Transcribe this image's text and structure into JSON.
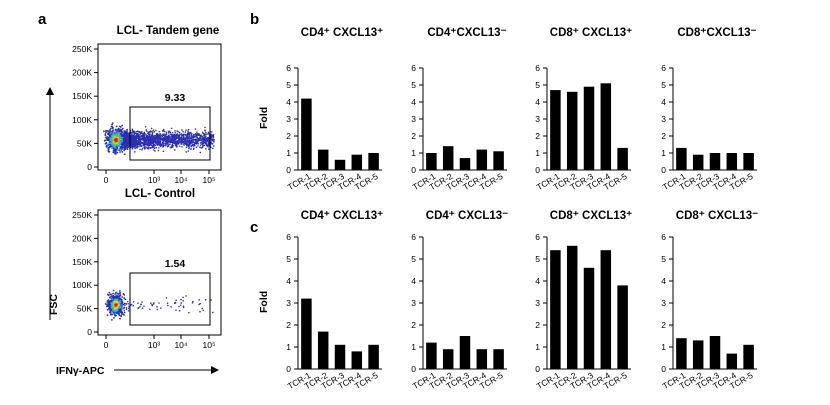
{
  "panels": {
    "a": "a",
    "b": "b",
    "c": "c"
  },
  "flow": {
    "plots": [
      {
        "title": "LCL- Tandem gene",
        "gate_value": "9.33",
        "events": 0.0933
      },
      {
        "title": "LCL- Control",
        "gate_value": "1.54",
        "events": 0.0154
      }
    ],
    "y_ticks": [
      "250K",
      "200K",
      "150K",
      "100K",
      "50K",
      "0"
    ],
    "x_ticks": [
      "0",
      "10³",
      "10⁴",
      "10⁵"
    ],
    "y_label": "FSC",
    "x_label": "IFNγ-APC"
  },
  "chart_data": [
    {
      "panel": "b",
      "type": "bar",
      "title": "CD4⁺ CXCL13⁺",
      "ylabel": "Fold",
      "ylim": [
        0,
        6
      ],
      "yticks": [
        0,
        1,
        2,
        3,
        4,
        5,
        6
      ],
      "categories": [
        "TCR-1",
        "TCR-2",
        "TCR-3",
        "TCR-4",
        "TCR-5"
      ],
      "values": [
        4.2,
        1.2,
        0.6,
        0.9,
        1.0
      ]
    },
    {
      "panel": "b",
      "type": "bar",
      "title": "CD4⁺CXCL13⁻",
      "ylabel": "",
      "ylim": [
        0,
        6
      ],
      "yticks": [
        0,
        1,
        2,
        3,
        4,
        5,
        6
      ],
      "categories": [
        "TCR-1",
        "TCR-2",
        "TCR-3",
        "TCR-4",
        "TCR-5"
      ],
      "values": [
        1.0,
        1.4,
        0.7,
        1.2,
        1.1
      ]
    },
    {
      "panel": "b",
      "type": "bar",
      "title": "CD8⁺ CXCL13⁺",
      "ylabel": "",
      "ylim": [
        0,
        6
      ],
      "yticks": [
        0,
        1,
        2,
        3,
        4,
        5,
        6
      ],
      "categories": [
        "TCR-1",
        "TCR-2",
        "TCR-3",
        "TCR-4",
        "TCR-5"
      ],
      "values": [
        4.7,
        4.6,
        4.9,
        5.1,
        1.3
      ]
    },
    {
      "panel": "b",
      "type": "bar",
      "title": "CD8⁺CXCL13⁻",
      "ylabel": "",
      "ylim": [
        0,
        6
      ],
      "yticks": [
        0,
        1,
        2,
        3,
        4,
        5,
        6
      ],
      "categories": [
        "TCR-1",
        "TCR-2",
        "TCR-3",
        "TCR-4",
        "TCR-5"
      ],
      "values": [
        1.3,
        0.9,
        1.0,
        1.0,
        1.0
      ]
    },
    {
      "panel": "c",
      "type": "bar",
      "title": "CD4⁺ CXCL13⁺",
      "ylabel": "Fold",
      "ylim": [
        0,
        6
      ],
      "yticks": [
        0,
        1,
        2,
        3,
        4,
        5,
        6
      ],
      "categories": [
        "TCR-1",
        "TCR-2",
        "TCR-3",
        "TCR-4",
        "TCR-5"
      ],
      "values": [
        3.2,
        1.7,
        1.1,
        0.8,
        1.1
      ]
    },
    {
      "panel": "c",
      "type": "bar",
      "title": "CD4⁺ CXCL13⁻",
      "ylabel": "",
      "ylim": [
        0,
        6
      ],
      "yticks": [
        0,
        1,
        2,
        3,
        4,
        5,
        6
      ],
      "categories": [
        "TCR-1",
        "TCR-2",
        "TCR-3",
        "TCR-4",
        "TCR-5"
      ],
      "values": [
        1.2,
        0.9,
        1.5,
        0.9,
        0.9
      ]
    },
    {
      "panel": "c",
      "type": "bar",
      "title": "CD8⁺ CXCL13⁺",
      "ylabel": "",
      "ylim": [
        0,
        6
      ],
      "yticks": [
        0,
        1,
        2,
        3,
        4,
        5,
        6
      ],
      "categories": [
        "TCR-1",
        "TCR-2",
        "TCR-3",
        "TCR-4",
        "TCR-5"
      ],
      "values": [
        5.4,
        5.6,
        4.6,
        5.4,
        3.8
      ]
    },
    {
      "panel": "c",
      "type": "bar",
      "title": "CD8⁺ CXCL13⁻",
      "ylabel": "",
      "ylim": [
        0,
        6
      ],
      "yticks": [
        0,
        1,
        2,
        3,
        4,
        5,
        6
      ],
      "categories": [
        "TCR-1",
        "TCR-2",
        "TCR-3",
        "TCR-4",
        "TCR-5"
      ],
      "values": [
        1.4,
        1.3,
        1.5,
        0.7,
        1.1
      ]
    }
  ]
}
